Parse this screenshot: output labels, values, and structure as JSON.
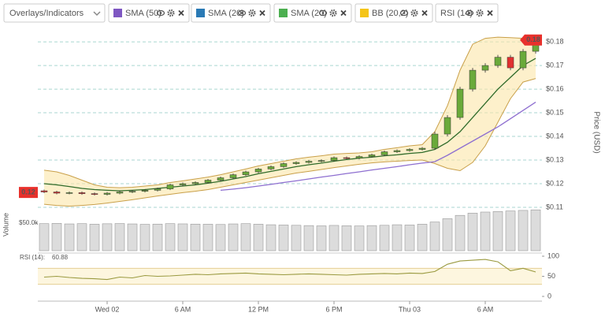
{
  "toolbar": {
    "dropdown": "Overlays/Indicators",
    "indicators": [
      {
        "name": "SMA (50)",
        "color": "#7e57c2"
      },
      {
        "name": "SMA (20)",
        "color": "#2a7ab5"
      },
      {
        "name": "SMA (20)",
        "color": "#4caf50"
      },
      {
        "name": "BB (20,2)",
        "color": "#f5c518"
      },
      {
        "name": "RSI (14)"
      }
    ]
  },
  "chart_data": [
    {
      "type": "candlestick",
      "ylabel": "Price (USD)",
      "grid": true,
      "x": [
        -5,
        -4,
        -3,
        -2,
        -1,
        0,
        1,
        2,
        3,
        4,
        5,
        6,
        7,
        8,
        9,
        10,
        11,
        12,
        13,
        14,
        15,
        16,
        17,
        18,
        19,
        20,
        21,
        22,
        23,
        24,
        25,
        26,
        27,
        28,
        29,
        30,
        31,
        32,
        33,
        34
      ],
      "open": [
        0.117,
        0.1165,
        0.116,
        0.1162,
        0.1158,
        0.1155,
        0.116,
        0.1165,
        0.1168,
        0.1172,
        0.1178,
        0.1195,
        0.12,
        0.1205,
        0.1215,
        0.1225,
        0.1238,
        0.125,
        0.1262,
        0.1272,
        0.1285,
        0.129,
        0.1295,
        0.1298,
        0.131,
        0.1308,
        0.1315,
        0.1322,
        0.1335,
        0.134,
        0.1345,
        0.135,
        0.141,
        0.148,
        0.16,
        0.168,
        0.17,
        0.1735,
        0.169,
        0.176
      ],
      "high": [
        0.1175,
        0.117,
        0.1167,
        0.1167,
        0.1163,
        0.1165,
        0.117,
        0.1173,
        0.1177,
        0.1183,
        0.12,
        0.1205,
        0.121,
        0.122,
        0.123,
        0.1243,
        0.1255,
        0.1267,
        0.1277,
        0.129,
        0.1295,
        0.13,
        0.1303,
        0.1315,
        0.1315,
        0.132,
        0.1327,
        0.134,
        0.1345,
        0.135,
        0.1355,
        0.142,
        0.149,
        0.161,
        0.169,
        0.171,
        0.1745,
        0.1745,
        0.177,
        0.181
      ],
      "low": [
        0.116,
        0.1155,
        0.1155,
        0.1153,
        0.115,
        0.115,
        0.1155,
        0.116,
        0.1163,
        0.1167,
        0.1173,
        0.119,
        0.1195,
        0.12,
        0.121,
        0.122,
        0.1233,
        0.1245,
        0.1257,
        0.1267,
        0.128,
        0.1285,
        0.129,
        0.1293,
        0.1303,
        0.1303,
        0.131,
        0.1317,
        0.133,
        0.1335,
        0.134,
        0.1345,
        0.14,
        0.147,
        0.159,
        0.167,
        0.169,
        0.168,
        0.168,
        0.175
      ],
      "close": [
        0.1165,
        0.116,
        0.1162,
        0.1158,
        0.1155,
        0.116,
        0.1165,
        0.1168,
        0.1172,
        0.1178,
        0.1195,
        0.12,
        0.1205,
        0.1215,
        0.1225,
        0.1238,
        0.125,
        0.1262,
        0.1272,
        0.1285,
        0.129,
        0.1295,
        0.1298,
        0.131,
        0.1308,
        0.1315,
        0.1322,
        0.1335,
        0.134,
        0.1345,
        0.135,
        0.141,
        0.148,
        0.16,
        0.168,
        0.17,
        0.1735,
        0.169,
        0.176,
        0.18
      ],
      "up_color": "#6aaa3a",
      "down_color": "#e03030",
      "bands": {
        "color": "#c9a04a",
        "fill": "#fbe6a8",
        "upper": [
          0.1257,
          0.125,
          0.1235,
          0.1215,
          0.1195,
          0.1185,
          0.1183,
          0.1185,
          0.119,
          0.1195,
          0.1205,
          0.1212,
          0.122,
          0.1228,
          0.1238,
          0.125,
          0.1262,
          0.1275,
          0.1285,
          0.1295,
          0.1305,
          0.1312,
          0.1318,
          0.1325,
          0.1328,
          0.133,
          0.1335,
          0.1345,
          0.1352,
          0.136,
          0.1365,
          0.142,
          0.153,
          0.168,
          0.179,
          0.1815,
          0.182,
          0.1818,
          0.1815,
          0.1812
        ],
        "lower": [
          0.1113,
          0.1108,
          0.1105,
          0.1108,
          0.1112,
          0.1118,
          0.1125,
          0.1132,
          0.114,
          0.1148,
          0.1155,
          0.1162,
          0.1168,
          0.1175,
          0.1185,
          0.1195,
          0.1205,
          0.1215,
          0.1225,
          0.1235,
          0.1245,
          0.1252,
          0.126,
          0.1268,
          0.1275,
          0.1282,
          0.1288,
          0.1292,
          0.1295,
          0.1298,
          0.13,
          0.1285,
          0.1265,
          0.1255,
          0.129,
          0.136,
          0.146,
          0.156,
          0.163,
          0.1645
        ]
      },
      "overlays": [
        {
          "color": "#2f6b2a",
          "values": [
            0.12,
            0.1195,
            0.1188,
            0.118,
            0.1175,
            0.1172,
            0.117,
            0.1172,
            0.1175,
            0.118,
            0.1185,
            0.119,
            0.1195,
            0.1202,
            0.121,
            0.122,
            0.123,
            0.1242,
            0.1252,
            0.1262,
            0.1272,
            0.128,
            0.1287,
            0.1295,
            0.1302,
            0.1308,
            0.1312,
            0.1318,
            0.1322,
            0.1328,
            0.1332,
            0.1345,
            0.1375,
            0.142,
            0.148,
            0.154,
            0.16,
            0.165,
            0.17,
            0.173
          ]
        },
        {
          "color": "#8e6fd0",
          "values": [
            null,
            null,
            null,
            null,
            null,
            null,
            null,
            null,
            null,
            null,
            null,
            null,
            null,
            null,
            0.1172,
            0.1177,
            0.1183,
            0.119,
            0.1197,
            0.1205,
            0.1212,
            0.122,
            0.1228,
            0.1235,
            0.1243,
            0.125,
            0.1258,
            0.1265,
            0.1272,
            0.128,
            0.1287,
            0.1293,
            0.132,
            0.135,
            0.138,
            0.141,
            0.144,
            0.1475,
            0.151,
            0.1545
          ]
        }
      ],
      "xlim": [
        -5.5,
        34.5
      ],
      "ylim": [
        0.105,
        0.1857
      ],
      "yticks": [
        {
          "value": 0.11,
          "label": "$0.11"
        },
        {
          "value": 0.12,
          "label": "$0.12"
        },
        {
          "value": 0.13,
          "label": "$0.13"
        },
        {
          "value": 0.14,
          "label": "$0.14"
        },
        {
          "value": 0.15,
          "label": "$0.15"
        },
        {
          "value": 0.16,
          "label": "$0.16"
        },
        {
          "value": 0.17,
          "label": "$0.17"
        },
        {
          "value": 0.18,
          "label": "$0.18"
        }
      ],
      "price_tags": [
        {
          "value": 0.1163,
          "label": "0.12",
          "side": "left"
        },
        {
          "value": 0.1808,
          "label": "0.18",
          "side": "right"
        }
      ]
    },
    {
      "type": "bar",
      "ylabel": "Volume",
      "color": "#dcdcdc",
      "x": [
        -5,
        -4,
        -3,
        -2,
        -1,
        0,
        1,
        2,
        3,
        4,
        5,
        6,
        7,
        8,
        9,
        10,
        11,
        12,
        13,
        14,
        15,
        16,
        17,
        18,
        19,
        20,
        21,
        22,
        23,
        24,
        25,
        26,
        27,
        28,
        29,
        30,
        31,
        32,
        33,
        34
      ],
      "values": [
        49000,
        49500,
        48500,
        49000,
        48000,
        48800,
        49200,
        48500,
        47800,
        48200,
        49000,
        48600,
        48200,
        48000,
        47500,
        48500,
        49000,
        48000,
        47000,
        46500,
        46000,
        45500,
        45000,
        45800,
        45200,
        44800,
        45500,
        46000,
        47000,
        46500,
        48000,
        52000,
        58000,
        64000,
        68000,
        70000,
        71000,
        72000,
        73000,
        74000
      ],
      "xlim": [
        -5.5,
        34.5
      ],
      "ylim": [
        0,
        80000
      ],
      "yticks": [
        {
          "value": 50000,
          "label": "$50.0k"
        }
      ]
    },
    {
      "type": "line",
      "label": "RSI (14):",
      "last_value": 60.88,
      "color": "#9a9a40",
      "x": [
        -5,
        -4,
        -3,
        -2,
        -1,
        0,
        1,
        2,
        3,
        4,
        5,
        6,
        7,
        8,
        9,
        10,
        11,
        12,
        13,
        14,
        15,
        16,
        17,
        18,
        19,
        20,
        21,
        22,
        23,
        24,
        25,
        26,
        27,
        28,
        29,
        30,
        31,
        32,
        33,
        34
      ],
      "values": [
        48,
        50,
        47,
        45,
        44,
        42,
        48,
        46,
        52,
        50,
        51,
        53,
        55,
        54,
        56,
        57,
        58,
        56,
        55,
        54,
        55,
        56,
        55,
        54,
        53,
        55,
        56,
        57,
        56,
        58,
        57,
        62,
        80,
        88,
        90,
        92,
        86,
        64,
        70,
        60.88
      ],
      "bands": [
        30,
        70
      ],
      "xlim": [
        -5.5,
        34.5
      ],
      "ylim": [
        0,
        100
      ],
      "yticks": [
        0,
        50,
        100
      ],
      "xticks": [
        {
          "value": 0,
          "label": "Wed 02"
        },
        {
          "value": 6,
          "label": "6 AM"
        },
        {
          "value": 12,
          "label": "12 PM"
        },
        {
          "value": 18,
          "label": "6 PM"
        },
        {
          "value": 24,
          "label": "Thu 03"
        },
        {
          "value": 30,
          "label": "6 AM"
        }
      ]
    }
  ]
}
